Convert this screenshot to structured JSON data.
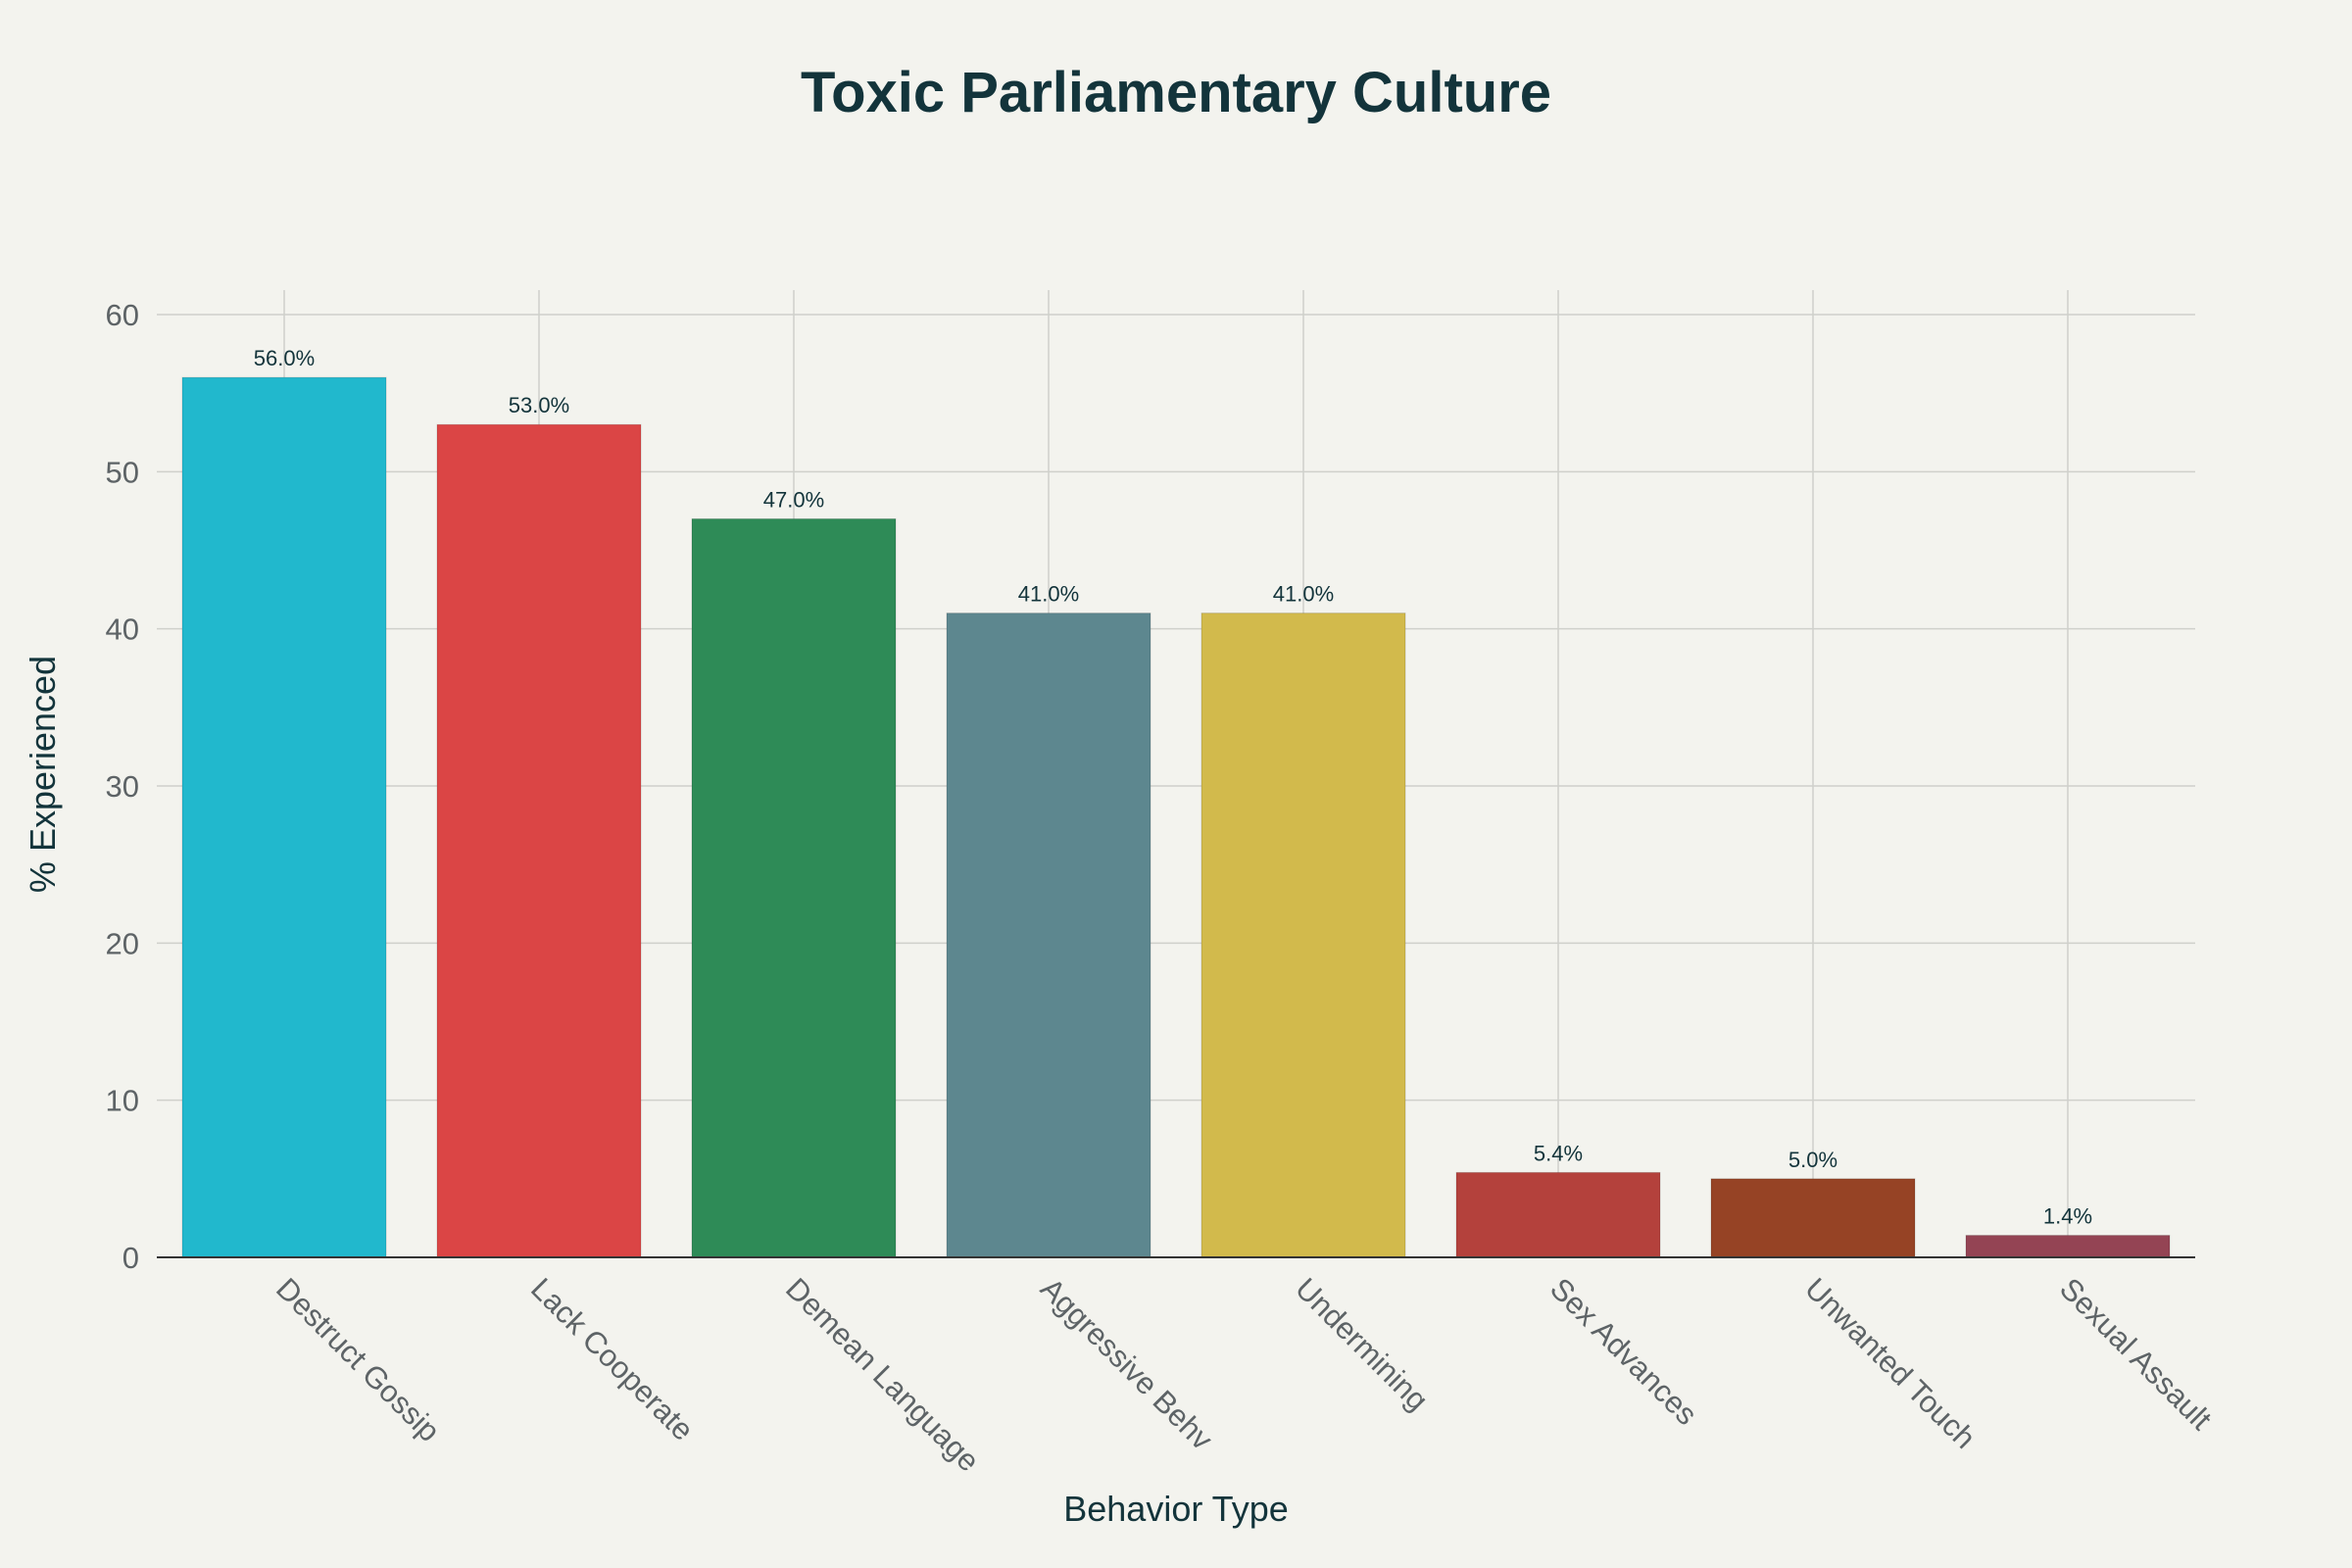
{
  "chart_data": {
    "type": "bar",
    "title": "Toxic Parliamentary Culture",
    "xlabel": "Behavior Type",
    "ylabel": "% Experienced",
    "categories": [
      "Destruct Gossip",
      "Lack Cooperate",
      "Demean Language",
      "Aggressive Behv",
      "Undermining",
      "Sex Advances",
      "Unwanted Touch",
      "Sexual Assault"
    ],
    "values": [
      56.0,
      53.0,
      47.0,
      41.0,
      41.0,
      5.4,
      5.0,
      1.4
    ],
    "data_labels": [
      "56.0%",
      "53.0%",
      "47.0%",
      "41.0%",
      "41.0%",
      "5.4%",
      "5.0%",
      "1.4%"
    ],
    "colors": [
      "#21b8cd",
      "#db4545",
      "#2e8b57",
      "#5d878f",
      "#d2ba4c",
      "#b4413c",
      "#964325",
      "#944454"
    ],
    "ylim": [
      0,
      60
    ],
    "yticks": [
      0,
      10,
      20,
      30,
      40,
      50,
      60
    ],
    "grid": true,
    "legend": "none"
  }
}
